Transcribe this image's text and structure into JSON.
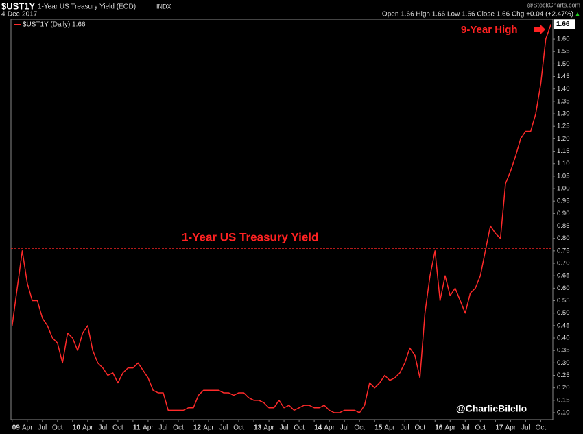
{
  "chart_data": {
    "type": "line",
    "symbol": "$UST1Y",
    "title": "1-Year US Treasury Yield (EOD)",
    "exchange": "INDX",
    "date": "4-Dec-2017",
    "source": "@StockCharts.com",
    "quote": "Open 1.66  High 1.66  Low 1.66  Close 1.66  Chg +0.04 (+2.47%)",
    "annotations": [
      "9-Year High",
      "1-Year US Treasury Yield",
      "@CharlieBilello"
    ],
    "reference_line": 0.76,
    "x": [
      2009,
      2009.083,
      2009.167,
      2009.25,
      2009.333,
      2009.417,
      2009.5,
      2009.583,
      2009.667,
      2009.75,
      2009.833,
      2009.917,
      2010,
      2010.083,
      2010.167,
      2010.25,
      2010.333,
      2010.417,
      2010.5,
      2010.583,
      2010.667,
      2010.75,
      2010.833,
      2010.917,
      2011,
      2011.083,
      2011.167,
      2011.25,
      2011.333,
      2011.417,
      2011.5,
      2011.583,
      2011.667,
      2011.75,
      2011.833,
      2011.917,
      2012,
      2012.083,
      2012.167,
      2012.25,
      2012.333,
      2012.417,
      2012.5,
      2012.583,
      2012.667,
      2012.75,
      2012.833,
      2012.917,
      2013,
      2013.083,
      2013.167,
      2013.25,
      2013.333,
      2013.417,
      2013.5,
      2013.583,
      2013.667,
      2013.75,
      2013.833,
      2013.917,
      2014,
      2014.083,
      2014.167,
      2014.25,
      2014.333,
      2014.417,
      2014.5,
      2014.583,
      2014.667,
      2014.75,
      2014.833,
      2014.917,
      2015,
      2015.083,
      2015.167,
      2015.25,
      2015.333,
      2015.417,
      2015.5,
      2015.583,
      2015.667,
      2015.75,
      2015.833,
      2015.917,
      2016,
      2016.083,
      2016.167,
      2016.25,
      2016.333,
      2016.417,
      2016.5,
      2016.583,
      2016.667,
      2016.75,
      2016.833,
      2016.917,
      2017,
      2017.083,
      2017.167,
      2017.25,
      2017.333,
      2017.417,
      2017.5,
      2017.583,
      2017.667,
      2017.75,
      2017.833,
      2017.92
    ],
    "series": [
      {
        "name": "$UST1Y (Daily) 1.66",
        "color": "#ff2a2a",
        "values": [
          0.45,
          0.6,
          0.75,
          0.62,
          0.55,
          0.55,
          0.48,
          0.45,
          0.4,
          0.38,
          0.3,
          0.42,
          0.4,
          0.35,
          0.42,
          0.45,
          0.35,
          0.3,
          0.28,
          0.25,
          0.26,
          0.22,
          0.26,
          0.28,
          0.28,
          0.3,
          0.27,
          0.24,
          0.19,
          0.18,
          0.18,
          0.11,
          0.11,
          0.11,
          0.11,
          0.12,
          0.12,
          0.17,
          0.19,
          0.19,
          0.19,
          0.19,
          0.18,
          0.18,
          0.17,
          0.18,
          0.18,
          0.16,
          0.15,
          0.15,
          0.14,
          0.12,
          0.12,
          0.15,
          0.12,
          0.13,
          0.11,
          0.12,
          0.13,
          0.13,
          0.12,
          0.12,
          0.13,
          0.11,
          0.1,
          0.1,
          0.11,
          0.11,
          0.11,
          0.1,
          0.13,
          0.22,
          0.2,
          0.22,
          0.25,
          0.23,
          0.24,
          0.26,
          0.3,
          0.36,
          0.33,
          0.24,
          0.5,
          0.65,
          0.75,
          0.55,
          0.65,
          0.57,
          0.6,
          0.55,
          0.5,
          0.58,
          0.6,
          0.65,
          0.75,
          0.85,
          0.82,
          0.8,
          1.02,
          1.07,
          1.13,
          1.2,
          1.23,
          1.23,
          1.3,
          1.42,
          1.6,
          1.66
        ]
      }
    ],
    "xlim": [
      2008.98,
      2017.95
    ],
    "ylim": [
      0.0725,
      1.68
    ],
    "xticks": [
      {
        "value": 2009,
        "label": "09"
      },
      {
        "value": 2009.25,
        "label": "Apr"
      },
      {
        "value": 2009.5,
        "label": "Jul"
      },
      {
        "value": 2009.75,
        "label": "Oct"
      },
      {
        "value": 2010,
        "label": "10"
      },
      {
        "value": 2010.25,
        "label": "Apr"
      },
      {
        "value": 2010.5,
        "label": "Jul"
      },
      {
        "value": 2010.75,
        "label": "Oct"
      },
      {
        "value": 2011,
        "label": "11"
      },
      {
        "value": 2011.25,
        "label": "Apr"
      },
      {
        "value": 2011.5,
        "label": "Jul"
      },
      {
        "value": 2011.75,
        "label": "Oct"
      },
      {
        "value": 2012,
        "label": "12"
      },
      {
        "value": 2012.25,
        "label": "Apr"
      },
      {
        "value": 2012.5,
        "label": "Jul"
      },
      {
        "value": 2012.75,
        "label": "Oct"
      },
      {
        "value": 2013,
        "label": "13"
      },
      {
        "value": 2013.25,
        "label": "Apr"
      },
      {
        "value": 2013.5,
        "label": "Jul"
      },
      {
        "value": 2013.75,
        "label": "Oct"
      },
      {
        "value": 2014,
        "label": "14"
      },
      {
        "value": 2014.25,
        "label": "Apr"
      },
      {
        "value": 2014.5,
        "label": "Jul"
      },
      {
        "value": 2014.75,
        "label": "Oct"
      },
      {
        "value": 2015,
        "label": "15"
      },
      {
        "value": 2015.25,
        "label": "Apr"
      },
      {
        "value": 2015.5,
        "label": "Jul"
      },
      {
        "value": 2015.75,
        "label": "Oct"
      },
      {
        "value": 2016,
        "label": "16"
      },
      {
        "value": 2016.25,
        "label": "Apr"
      },
      {
        "value": 2016.5,
        "label": "Jul"
      },
      {
        "value": 2016.75,
        "label": "Oct"
      },
      {
        "value": 2017,
        "label": "17"
      },
      {
        "value": 2017.25,
        "label": "Apr"
      },
      {
        "value": 2017.5,
        "label": "Jul"
      },
      {
        "value": 2017.75,
        "label": "Oct"
      }
    ],
    "yticks": [
      {
        "value": 0.1,
        "label": "0.10"
      },
      {
        "value": 0.15,
        "label": "0.15"
      },
      {
        "value": 0.2,
        "label": "0.20"
      },
      {
        "value": 0.25,
        "label": "0.25"
      },
      {
        "value": 0.3,
        "label": "0.30"
      },
      {
        "value": 0.35,
        "label": "0.35"
      },
      {
        "value": 0.4,
        "label": "0.40"
      },
      {
        "value": 0.45,
        "label": "0.45"
      },
      {
        "value": 0.5,
        "label": "0.50"
      },
      {
        "value": 0.55,
        "label": "0.55"
      },
      {
        "value": 0.6,
        "label": "0.60"
      },
      {
        "value": 0.65,
        "label": "0.65"
      },
      {
        "value": 0.7,
        "label": "0.70"
      },
      {
        "value": 0.75,
        "label": "0.75"
      },
      {
        "value": 0.8,
        "label": "0.80"
      },
      {
        "value": 0.85,
        "label": "0.85"
      },
      {
        "value": 0.9,
        "label": "0.90"
      },
      {
        "value": 0.95,
        "label": "0.95"
      },
      {
        "value": 1,
        "label": "1.00"
      },
      {
        "value": 1.05,
        "label": "1.05"
      },
      {
        "value": 1.1,
        "label": "1.10"
      },
      {
        "value": 1.15,
        "label": "1.15"
      },
      {
        "value": 1.2,
        "label": "1.20"
      },
      {
        "value": 1.25,
        "label": "1.25"
      },
      {
        "value": 1.3,
        "label": "1.30"
      },
      {
        "value": 1.35,
        "label": "1.35"
      },
      {
        "value": 1.4,
        "label": "1.40"
      },
      {
        "value": 1.45,
        "label": "1.45"
      },
      {
        "value": 1.5,
        "label": "1.50"
      },
      {
        "value": 1.55,
        "label": "1.55"
      },
      {
        "value": 1.6,
        "label": "1.60"
      }
    ],
    "grid": false
  }
}
